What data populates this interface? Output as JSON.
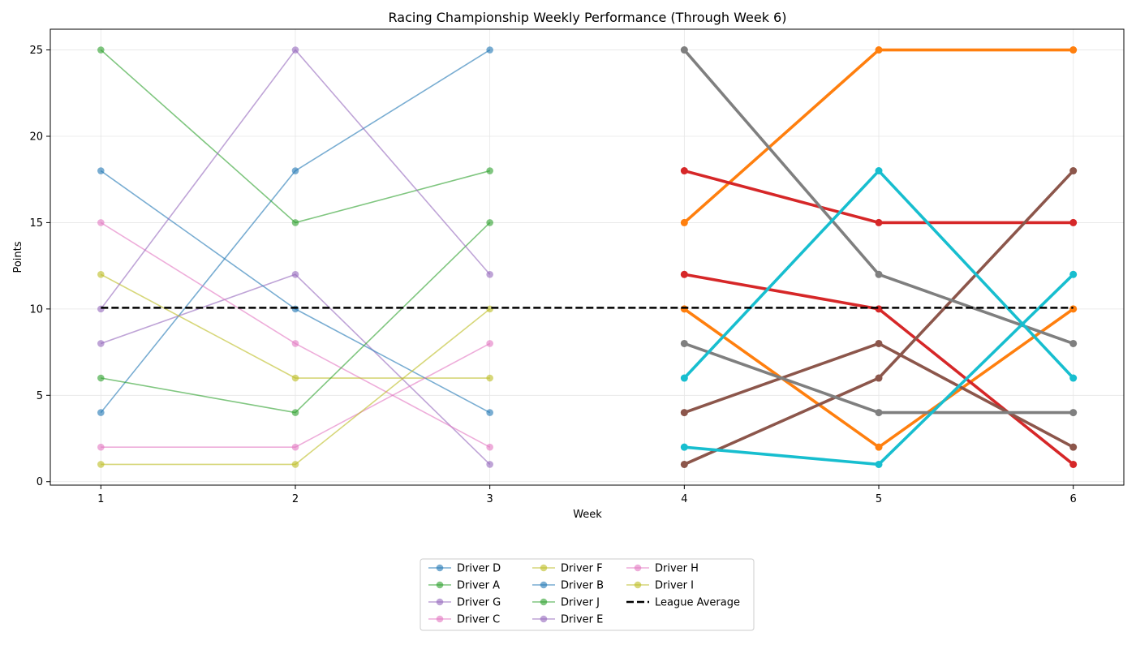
{
  "chart_data": {
    "type": "line",
    "title": "Racing Championship Weekly Performance (Through Week 6)",
    "xlabel": "Week",
    "ylabel": "Points",
    "xlim": [
      0.74,
      6.26
    ],
    "ylim": [
      -0.2,
      26.2
    ],
    "xticks": [
      1,
      2,
      3,
      4,
      5,
      6
    ],
    "yticks": [
      0,
      5,
      10,
      15,
      20,
      25
    ],
    "grid": true,
    "legend_location": "bottom-center, outside plot, 3 columns",
    "league_average": {
      "name": "League Average",
      "value": 10.07,
      "color": "#000000"
    },
    "early_series": [
      {
        "name": "Driver D",
        "color": "#1f77b4",
        "x": [
          1,
          2,
          3
        ],
        "values": [
          4,
          18,
          25
        ]
      },
      {
        "name": "Driver A",
        "color": "#2ca02c",
        "x": [
          1,
          2,
          3
        ],
        "values": [
          25,
          15,
          18
        ]
      },
      {
        "name": "Driver G",
        "color": "#9467bd",
        "x": [
          1,
          2,
          3
        ],
        "values": [
          8,
          12,
          1
        ]
      },
      {
        "name": "Driver C",
        "color": "#e377c2",
        "x": [
          1,
          2,
          3
        ],
        "values": [
          15,
          8,
          2
        ]
      },
      {
        "name": "Driver F",
        "color": "#bcbd22",
        "x": [
          1,
          2,
          3
        ],
        "values": [
          12,
          6,
          6
        ]
      },
      {
        "name": "Driver B",
        "color": "#1f77b4",
        "x": [
          1,
          2,
          3
        ],
        "values": [
          18,
          10,
          4
        ]
      },
      {
        "name": "Driver J",
        "color": "#2ca02c",
        "x": [
          1,
          2,
          3
        ],
        "values": [
          6,
          4,
          15
        ]
      },
      {
        "name": "Driver E",
        "color": "#9467bd",
        "x": [
          1,
          2,
          3
        ],
        "values": [
          10,
          25,
          12
        ]
      },
      {
        "name": "Driver H",
        "color": "#e377c2",
        "x": [
          1,
          2,
          3
        ],
        "values": [
          2,
          2,
          8
        ]
      },
      {
        "name": "Driver I",
        "color": "#bcbd22",
        "x": [
          1,
          2,
          3
        ],
        "values": [
          1,
          1,
          10
        ]
      }
    ],
    "late_series": [
      {
        "color": "#ff7f0e",
        "x": [
          4,
          5,
          6
        ],
        "values": [
          15,
          25,
          25
        ]
      },
      {
        "color": "#ff7f0e",
        "x": [
          4,
          5,
          6
        ],
        "values": [
          10,
          2,
          10
        ]
      },
      {
        "color": "#d62728",
        "x": [
          4,
          5,
          6
        ],
        "values": [
          18,
          15,
          15
        ]
      },
      {
        "color": "#d62728",
        "x": [
          4,
          5,
          6
        ],
        "values": [
          12,
          10,
          1
        ]
      },
      {
        "color": "#8c564b",
        "x": [
          4,
          5,
          6
        ],
        "values": [
          4,
          8,
          2
        ]
      },
      {
        "color": "#8c564b",
        "x": [
          4,
          5,
          6
        ],
        "values": [
          1,
          6,
          18
        ]
      },
      {
        "color": "#7f7f7f",
        "x": [
          4,
          5,
          6
        ],
        "values": [
          25,
          12,
          8
        ]
      },
      {
        "color": "#7f7f7f",
        "x": [
          4,
          5,
          6
        ],
        "values": [
          8,
          4,
          4
        ]
      },
      {
        "color": "#17becf",
        "x": [
          4,
          5,
          6
        ],
        "values": [
          6,
          18,
          6
        ]
      },
      {
        "color": "#17becf",
        "x": [
          4,
          5,
          6
        ],
        "values": [
          2,
          1,
          12
        ]
      }
    ]
  }
}
